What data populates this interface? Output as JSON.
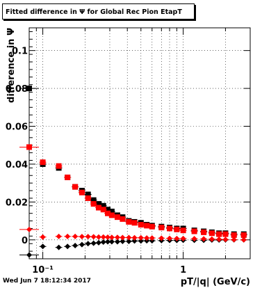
{
  "title": "Fitted difference in  Ψ  for Global Rec Pion EtapT",
  "footer": "Wed Jun  7 18:12:34 2017",
  "chart_data": {
    "type": "scatter",
    "title": "Fitted difference in  Ψ  for Global Rec Pion EtapT",
    "xlabel": "pT/|q| (GeV/c)",
    "ylabel": "difference in  Ψ",
    "xscale": "log",
    "xlim": [
      0.08,
      3.0
    ],
    "ylim": [
      -0.01,
      0.112
    ],
    "x_tick_labels": [
      "10⁻¹",
      "1"
    ],
    "y_ticks": [
      0,
      0.02,
      0.04,
      0.06,
      0.08,
      0.1
    ],
    "y_tick_labels": [
      "0",
      "0.02",
      "0.04",
      "0.06",
      "0.08",
      "0.1"
    ],
    "grid": true,
    "series": [
      {
        "color": "#000000",
        "marker": "square",
        "x": [
          0.08,
          0.1,
          0.13,
          0.15,
          0.17,
          0.19,
          0.21,
          0.23,
          0.25,
          0.27,
          0.29,
          0.31,
          0.34,
          0.37,
          0.41,
          0.45,
          0.5,
          0.55,
          0.6,
          0.7,
          0.8,
          0.9,
          1.0,
          1.2,
          1.4,
          1.6,
          1.8,
          2.0,
          2.3,
          2.7
        ],
        "y": [
          0.08,
          0.04,
          0.038,
          0.033,
          0.028,
          0.026,
          0.024,
          0.021,
          0.019,
          0.018,
          0.016,
          0.015,
          0.013,
          0.012,
          0.01,
          0.0095,
          0.009,
          0.008,
          0.0075,
          0.007,
          0.0065,
          0.006,
          0.006,
          0.005,
          0.0045,
          0.004,
          0.0035,
          0.0035,
          0.003,
          0.003
        ]
      },
      {
        "color": "#ff0000",
        "marker": "square",
        "x": [
          0.08,
          0.1,
          0.13,
          0.15,
          0.17,
          0.19,
          0.21,
          0.23,
          0.25,
          0.27,
          0.29,
          0.31,
          0.34,
          0.37,
          0.41,
          0.45,
          0.5,
          0.55,
          0.6,
          0.7,
          0.8,
          0.9,
          1.0,
          1.2,
          1.4,
          1.6,
          1.8,
          2.0,
          2.3,
          2.7
        ],
        "y": [
          0.049,
          0.041,
          0.039,
          0.033,
          0.028,
          0.025,
          0.022,
          0.019,
          0.017,
          0.016,
          0.014,
          0.013,
          0.012,
          0.011,
          0.0095,
          0.009,
          0.008,
          0.0075,
          0.007,
          0.0065,
          0.006,
          0.0055,
          0.005,
          0.0045,
          0.004,
          0.0035,
          0.003,
          0.003,
          0.0025,
          0.0025
        ]
      },
      {
        "color": "#000000",
        "marker": "diamond",
        "x": [
          0.08,
          0.1,
          0.13,
          0.15,
          0.17,
          0.19,
          0.21,
          0.23,
          0.25,
          0.27,
          0.29,
          0.31,
          0.34,
          0.37,
          0.41,
          0.45,
          0.5,
          0.55,
          0.6,
          0.7,
          0.8,
          0.9,
          1.0,
          1.2,
          1.4,
          1.6,
          1.8,
          2.0,
          2.3,
          2.7
        ],
        "y": [
          -0.008,
          -0.0035,
          -0.004,
          -0.0035,
          -0.003,
          -0.0025,
          -0.002,
          -0.0018,
          -0.0015,
          -0.0012,
          -0.001,
          -0.001,
          -0.001,
          -0.0008,
          -0.0008,
          -0.0006,
          -0.0006,
          -0.0005,
          -0.0005,
          -0.0004,
          -0.0003,
          -0.0003,
          -0.0002,
          -0.0002,
          -0.0002,
          -0.0001,
          -0.0001,
          0.0,
          0.0,
          0.0
        ]
      },
      {
        "color": "#ff0000",
        "marker": "diamond",
        "x": [
          0.08,
          0.1,
          0.13,
          0.15,
          0.17,
          0.19,
          0.21,
          0.23,
          0.25,
          0.27,
          0.29,
          0.31,
          0.34,
          0.37,
          0.41,
          0.45,
          0.5,
          0.55,
          0.6,
          0.7,
          0.8,
          0.9,
          1.0,
          1.2,
          1.4,
          1.6,
          1.8,
          2.0,
          2.3,
          2.7
        ],
        "y": [
          0.0055,
          0.0015,
          0.0018,
          0.0018,
          0.0018,
          0.0017,
          0.0017,
          0.0016,
          0.0015,
          0.0015,
          0.0014,
          0.0013,
          0.0013,
          0.0012,
          0.0012,
          0.0011,
          0.0011,
          0.001,
          0.001,
          0.0009,
          0.0008,
          0.0007,
          0.0007,
          0.0006,
          0.0005,
          0.0004,
          0.0003,
          0.0002,
          0.0001,
          0.0
        ]
      }
    ]
  }
}
